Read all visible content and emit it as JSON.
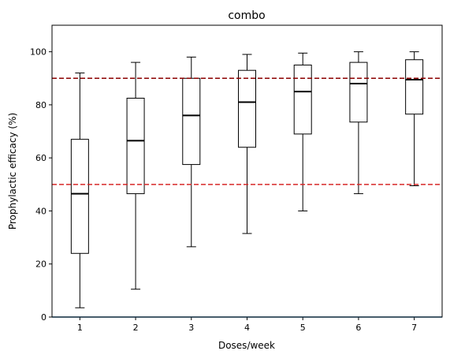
{
  "chart_data": {
    "type": "box",
    "title": "combo",
    "xlabel": "Doses/week",
    "ylabel": "Prophylactic efficacy (%)",
    "categories": [
      "1",
      "2",
      "3",
      "4",
      "5",
      "6",
      "7"
    ],
    "ylim": [
      0,
      110
    ],
    "yticks": [
      0,
      20,
      40,
      60,
      80,
      100
    ],
    "grid": false,
    "boxes": [
      {
        "whisker_low": 3.5,
        "q1": 24.0,
        "median": 46.5,
        "q3": 67.0,
        "whisker_high": 92.0
      },
      {
        "whisker_low": 10.5,
        "q1": 46.5,
        "median": 66.5,
        "q3": 82.5,
        "whisker_high": 96.0
      },
      {
        "whisker_low": 26.5,
        "q1": 57.5,
        "median": 76.0,
        "q3": 90.0,
        "whisker_high": 98.0
      },
      {
        "whisker_low": 31.5,
        "q1": 64.0,
        "median": 81.0,
        "q3": 93.0,
        "whisker_high": 99.0
      },
      {
        "whisker_low": 40.0,
        "q1": 69.0,
        "median": 85.0,
        "q3": 95.0,
        "whisker_high": 99.5
      },
      {
        "whisker_low": 46.5,
        "q1": 73.5,
        "median": 88.0,
        "q3": 96.0,
        "whisker_high": 100.0
      },
      {
        "whisker_low": 49.5,
        "q1": 76.5,
        "median": 89.5,
        "q3": 97.0,
        "whisker_high": 100.0
      }
    ],
    "reference_lines": [
      {
        "y": 90,
        "color": "#8b0000",
        "style": "dashed"
      },
      {
        "y": 50,
        "color": "#d62728",
        "style": "dashed"
      },
      {
        "y": 0,
        "color": "#1f77b4",
        "style": "solid"
      }
    ],
    "colors": {
      "box": "#000000",
      "median": "#000000"
    }
  }
}
